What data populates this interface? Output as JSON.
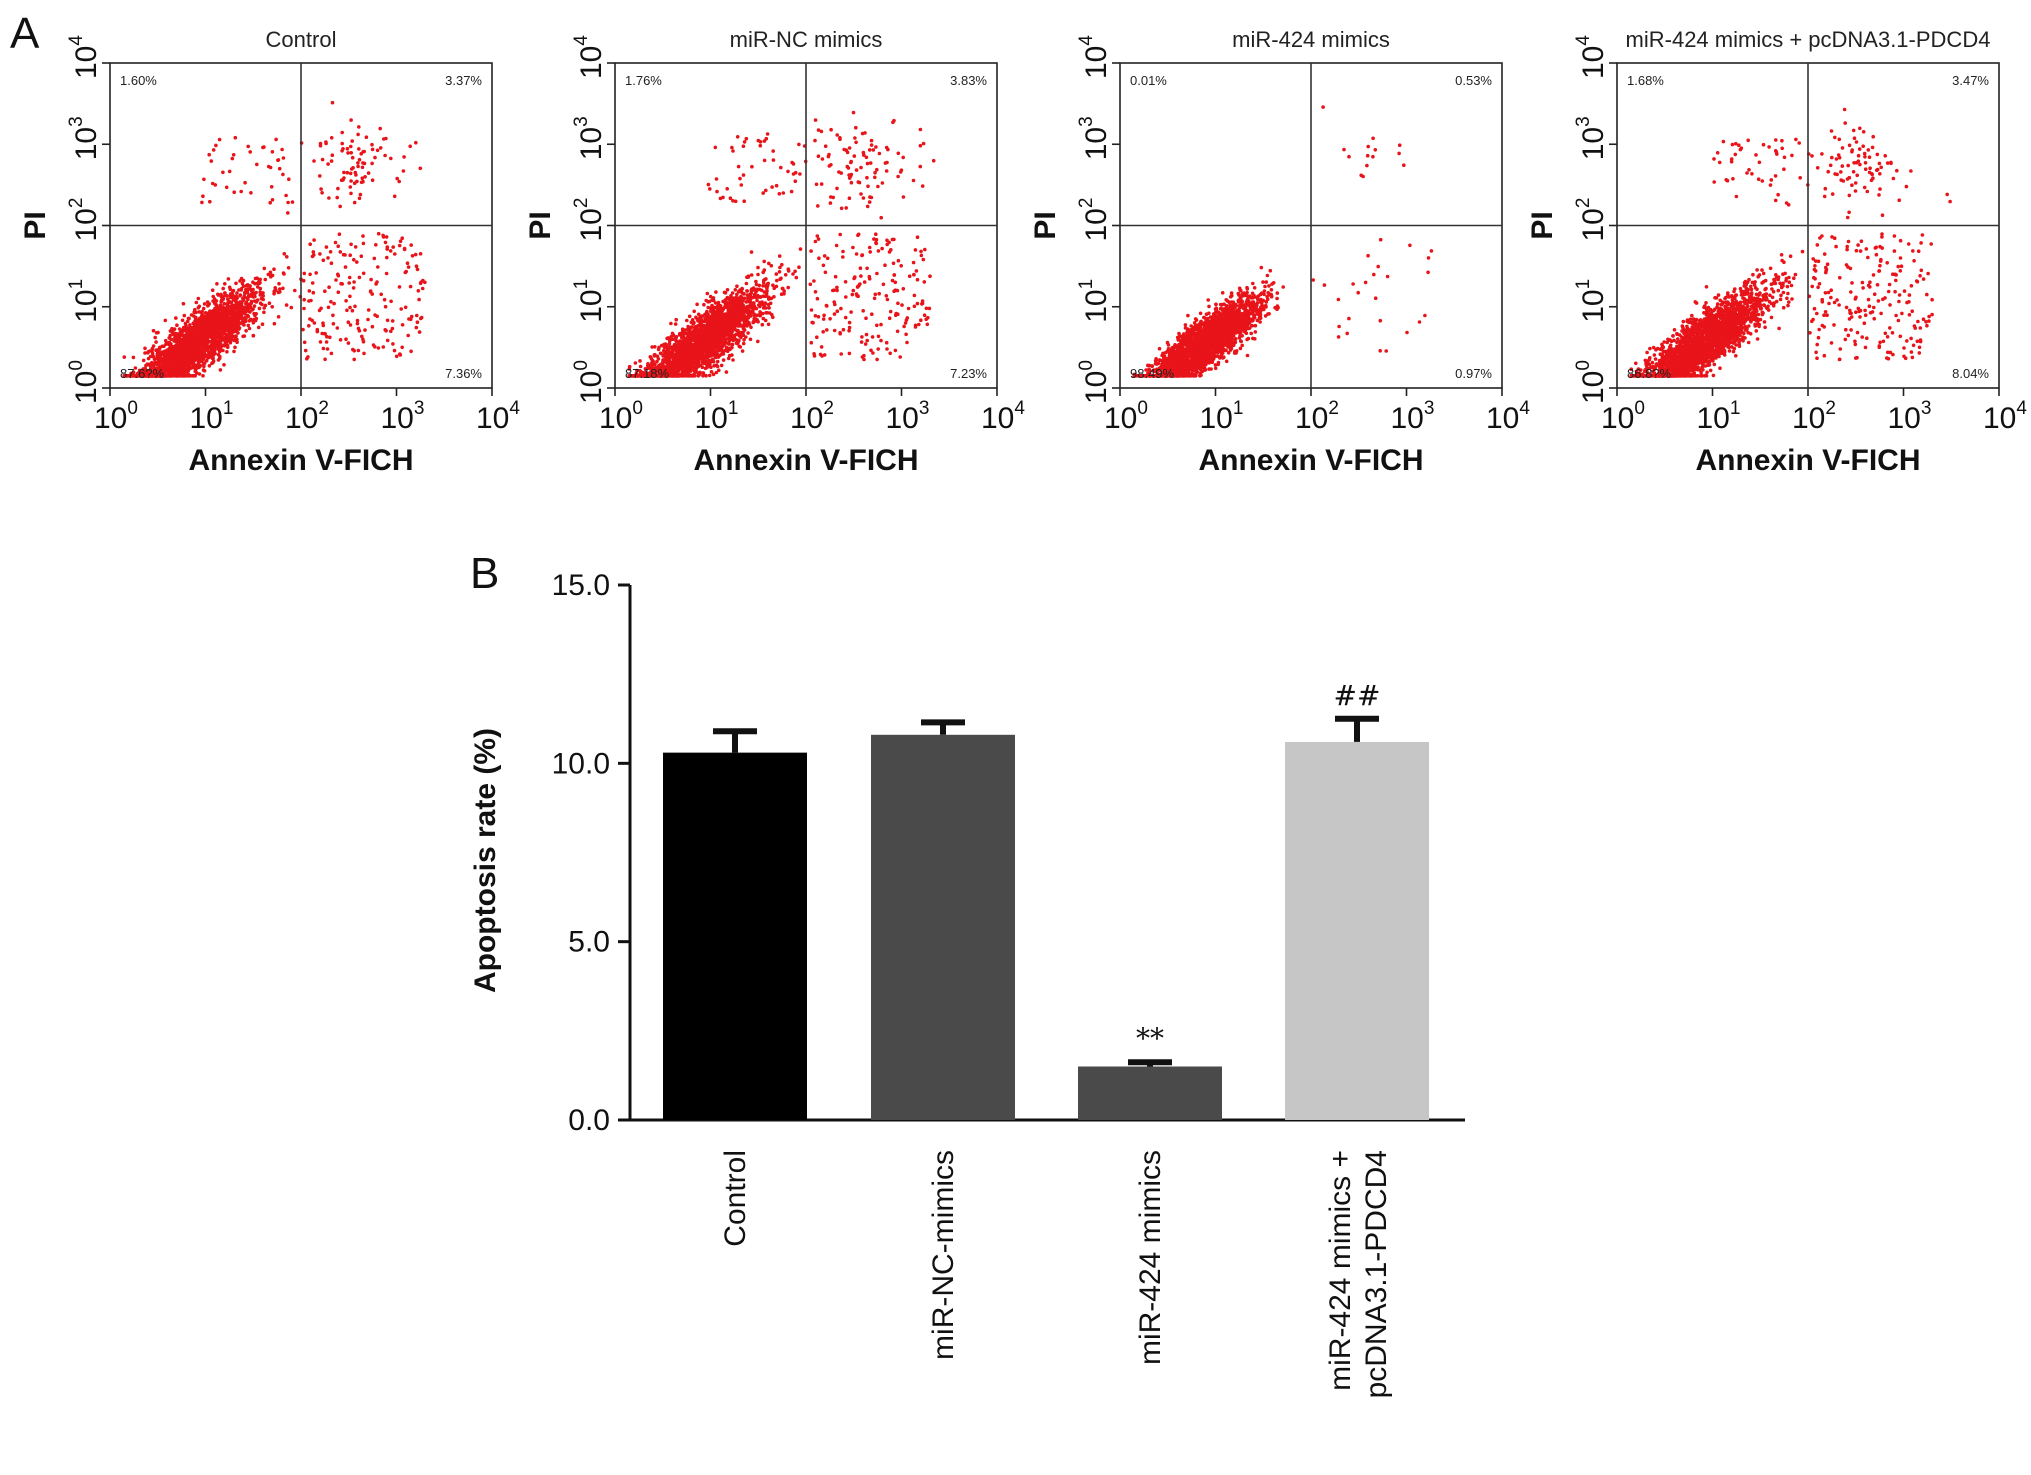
{
  "panel_a_label": "A",
  "panel_b_label": "B",
  "flow_plots": {
    "x_axis_label": "Annexin V-FICH",
    "y_axis_label": "PI",
    "tick_base": "10",
    "tick_exponents": [
      "0",
      "1",
      "2",
      "3",
      "4"
    ],
    "dot_color": "#e8141a",
    "panels": [
      {
        "title": "Control",
        "quadrants": {
          "upper_left": "1.60%",
          "upper_right": "3.37%",
          "lower_left": "87.6?%",
          "lower_right": "7.36%"
        }
      },
      {
        "title": "miR-NC mimics",
        "quadrants": {
          "upper_left": "1.76%",
          "upper_right": "3.83%",
          "lower_left": "87.18%",
          "lower_right": "7.23%"
        }
      },
      {
        "title": "miR-424 mimics",
        "quadrants": {
          "upper_left": "0.01%",
          "upper_right": "0.53%",
          "lower_left": "98.49%",
          "lower_right": "0.97%"
        }
      },
      {
        "title": "miR-424 mimics + pcDNA3.1-PDCD4",
        "quadrants": {
          "upper_left": "1.68%",
          "upper_right": "3.47%",
          "lower_left": "86.8?%",
          "lower_right": "8.04%"
        }
      }
    ]
  },
  "chart_data": {
    "type": "bar",
    "title": "",
    "xlabel": "",
    "ylabel": "Apoptosis rate (%)",
    "ylim": [
      0,
      15
    ],
    "yticks": [
      "0.0",
      "5.0",
      "10.0",
      "15.0"
    ],
    "categories": [
      "Control",
      "miR-NC-mimics",
      "miR-424 mimics",
      "miR-424 mimics +\npcDNA3.1-PDCD4"
    ],
    "values": [
      10.3,
      10.8,
      1.5,
      10.6
    ],
    "errors": [
      0.6,
      0.35,
      0.12,
      0.65
    ],
    "significance": [
      "",
      "",
      "**",
      "##"
    ],
    "bar_colors": [
      "#000000",
      "#4a4a4a",
      "#4a4a4a",
      "#c6c6c6"
    ]
  }
}
